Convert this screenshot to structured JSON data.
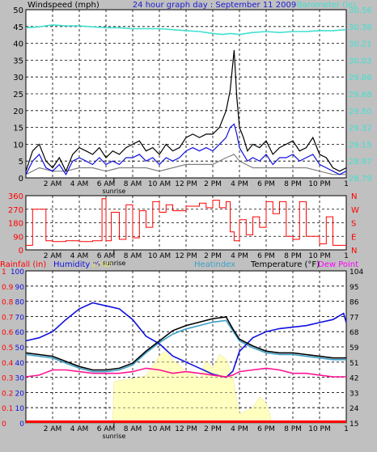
{
  "header": {
    "left_label": "Windspeed (mph)",
    "title": "24 hour graph day : September 11 2009",
    "right_label": "Barometer (in)"
  },
  "colors": {
    "background": "#c0c0c0",
    "panel": "#ffffff",
    "title_blue": "#1a1ad0",
    "cyan": "#40e0d0",
    "red": "#ff0000",
    "blue": "#1010e0",
    "black": "#000000",
    "gray": "#808080",
    "pink": "#ff1493",
    "solar": "#ffffc0",
    "heat_blue": "#3aa0c8",
    "dewpoint_label": "#ff00ff"
  },
  "time_axis": {
    "labels": [
      "2 AM",
      "4 AM",
      "6 AM",
      "8 AM",
      "10 AM",
      "12 PM",
      "2 PM",
      "4 PM",
      "6 PM",
      "8 PM",
      "10 PM"
    ],
    "label_hours": [
      2,
      4,
      6,
      8,
      10,
      12,
      14,
      16,
      18,
      20,
      22
    ],
    "end_mark": "1",
    "sunrise_label": "sunrise",
    "sunrise_hour": 6.6
  },
  "chart_data": [
    {
      "type": "line",
      "title": "",
      "ylabel": "Windspeed (mph)",
      "y2label": "Barometer (in)",
      "ylim": [
        0,
        50
      ],
      "yticks": [
        "0",
        "5",
        "10",
        "15",
        "20",
        "25",
        "30",
        "35",
        "40",
        "45",
        "50"
      ],
      "y2lim": [
        28.79,
        30.56
      ],
      "y2ticks": [
        "28.79",
        "28.97",
        "29.15",
        "29.32",
        "29.50",
        "29.68",
        "29.86",
        "30.03",
        "30.21",
        "30.38",
        "30.56"
      ],
      "xlim": [
        0,
        24
      ],
      "grid": true,
      "series": [
        {
          "name": "Barometer (in)",
          "axis": "right",
          "color": "#40e0d0",
          "x": [
            0,
            1,
            2,
            3,
            4,
            5,
            6,
            7,
            8,
            9,
            10,
            11,
            12,
            13,
            14,
            14.7,
            15.3,
            16,
            17,
            18,
            19,
            20,
            21,
            22,
            23,
            24
          ],
          "y": [
            30.37,
            30.38,
            30.4,
            30.39,
            30.39,
            30.38,
            30.37,
            30.37,
            30.36,
            30.36,
            30.36,
            30.35,
            30.34,
            30.33,
            30.31,
            30.3,
            30.31,
            30.3,
            30.32,
            30.33,
            30.32,
            30.33,
            30.33,
            30.34,
            30.34,
            30.35
          ]
        },
        {
          "name": "Wind gust",
          "axis": "left",
          "color": "#000000",
          "x": [
            0,
            0.5,
            1,
            1.5,
            2,
            2.5,
            3,
            3.5,
            4,
            4.5,
            5,
            5.5,
            6,
            6.5,
            7,
            7.5,
            8,
            8.5,
            9,
            9.5,
            10,
            10.5,
            11,
            11.5,
            12,
            12.5,
            13,
            13.5,
            14,
            14.5,
            15,
            15.3,
            15.6,
            15.8,
            16,
            16.3,
            16.6,
            17,
            17.5,
            18,
            18.5,
            19,
            19.5,
            20,
            20.5,
            21,
            21.5,
            22,
            22.5,
            23,
            23.5,
            24
          ],
          "y": [
            2,
            8,
            10,
            5,
            3,
            6,
            2,
            7,
            9,
            8,
            7,
            9,
            6,
            8,
            7,
            9,
            10,
            11,
            8,
            9,
            7,
            10,
            8,
            9,
            12,
            13,
            12,
            13,
            13,
            15,
            20,
            26,
            38,
            24,
            15,
            12,
            8,
            10,
            9,
            11,
            7,
            9,
            10,
            11,
            8,
            9,
            12,
            7,
            6,
            3,
            2,
            3
          ]
        },
        {
          "name": "Wind speed",
          "axis": "left",
          "color": "#1010e0",
          "x": [
            0,
            0.5,
            1,
            1.5,
            2,
            2.5,
            3,
            3.5,
            4,
            4.5,
            5,
            5.5,
            6,
            6.5,
            7,
            7.5,
            8,
            8.5,
            9,
            9.5,
            10,
            10.5,
            11,
            11.5,
            12,
            12.5,
            13,
            13.5,
            14,
            14.5,
            15,
            15.3,
            15.6,
            15.8,
            16,
            16.3,
            16.6,
            17,
            17.5,
            18,
            18.5,
            19,
            19.5,
            20,
            20.5,
            21,
            21.5,
            22,
            22.5,
            23,
            23.5,
            24
          ],
          "y": [
            1,
            5,
            7,
            3,
            2,
            4,
            1,
            5,
            6,
            5,
            4,
            6,
            4,
            5,
            4,
            6,
            6,
            7,
            5,
            6,
            4,
            6,
            5,
            6,
            8,
            9,
            8,
            9,
            8,
            10,
            12,
            15,
            16,
            13,
            9,
            7,
            5,
            6,
            5,
            7,
            4,
            6,
            6,
            7,
            5,
            6,
            7,
            4,
            3,
            2,
            1,
            2
          ]
        },
        {
          "name": "Wind average",
          "axis": "left",
          "color": "#808080",
          "x": [
            0,
            1,
            2,
            3,
            4,
            5,
            6,
            7,
            8,
            9,
            10,
            11,
            12,
            13,
            14,
            15,
            15.6,
            16,
            17,
            18,
            19,
            20,
            21,
            22,
            23,
            24
          ],
          "y": [
            1,
            3,
            2,
            2,
            3,
            3,
            2,
            3,
            3,
            3,
            2,
            3,
            4,
            4,
            4,
            6,
            7,
            5,
            3,
            3,
            3,
            3,
            3,
            2,
            1,
            1
          ]
        }
      ]
    },
    {
      "type": "line",
      "title": "",
      "ylabel": "Wind direction",
      "ylim": [
        0,
        360
      ],
      "yticks": [
        "0",
        "90",
        "180",
        "270",
        "360"
      ],
      "y2ticks": [
        "N",
        "E",
        "S",
        "W",
        "N"
      ],
      "xlim": [
        0,
        24
      ],
      "grid": true,
      "series": [
        {
          "name": "Wind direction",
          "axis": "left",
          "color": "#ff0000",
          "x": [
            0,
            0.5,
            1,
            1.5,
            2,
            3,
            4,
            5,
            5.7,
            6,
            6.4,
            7,
            7.5,
            8,
            8.5,
            9,
            9.5,
            10,
            10.5,
            11,
            12,
            13,
            13.5,
            14,
            14.5,
            15,
            15.3,
            15.6,
            16,
            16.5,
            17,
            17.5,
            18,
            18.5,
            19,
            19.5,
            20,
            20.5,
            21,
            22,
            22.5,
            23,
            24
          ],
          "y": [
            30,
            270,
            270,
            60,
            55,
            60,
            55,
            60,
            340,
            60,
            250,
            70,
            300,
            80,
            260,
            150,
            320,
            250,
            300,
            260,
            290,
            310,
            280,
            330,
            280,
            320,
            120,
            60,
            200,
            100,
            220,
            150,
            320,
            240,
            320,
            90,
            70,
            320,
            90,
            40,
            220,
            30,
            30
          ]
        }
      ]
    },
    {
      "type": "line",
      "title": "",
      "ylabel": "Temperature (°F)",
      "y_left_outer": {
        "name": "Rainfall (in)",
        "ticks": [
          "0",
          "0.1",
          "0.2",
          "0.3",
          "0.4",
          "0.5",
          "0.6",
          "0.7",
          "0.8",
          "0.9",
          "1"
        ]
      },
      "y_left_inner": {
        "name": "Humidity %",
        "ticks": [
          "0",
          "10",
          "20",
          "30",
          "40",
          "50",
          "60",
          "70",
          "80",
          "90",
          "100"
        ]
      },
      "y_right": {
        "name": "Temperature (°F)",
        "ticks": [
          "15",
          "24",
          "33",
          "42",
          "51",
          "59",
          "68",
          "77",
          "86",
          "95",
          "104"
        ]
      },
      "legend": [
        "Rainfall (in)",
        "Humidity %",
        "Solar",
        "Heatindex",
        "Temperature (°F)",
        "Dew Point"
      ],
      "ylim": [
        0,
        100
      ],
      "xlim": [
        0,
        24
      ],
      "grid": true,
      "series": [
        {
          "name": "Solar",
          "axis": "left",
          "color": "#ffffc0",
          "x": [
            0,
            6.5,
            6.6,
            7,
            8,
            9,
            10,
            10.5,
            11,
            11.5,
            12,
            12.5,
            13,
            13.5,
            14,
            14.5,
            15,
            15.5,
            16,
            16.5,
            17,
            17.5,
            18,
            18.3,
            18.4,
            24
          ],
          "y": [
            0,
            0,
            27,
            28,
            29,
            31,
            44,
            48,
            41,
            38,
            33,
            33,
            29,
            41,
            36,
            45,
            42,
            30,
            6,
            8,
            10,
            17,
            13,
            5,
            0,
            0
          ]
        },
        {
          "name": "Humidity %",
          "axis": "left",
          "color": "#1010e0",
          "x": [
            0,
            1,
            2,
            3,
            4,
            5,
            6,
            7,
            8,
            9,
            10,
            11,
            12,
            13,
            14,
            15,
            15.5,
            16,
            17,
            18,
            19,
            20,
            21,
            22,
            23,
            23.8,
            24
          ],
          "y": [
            54,
            56,
            60,
            68,
            75,
            79,
            77,
            75,
            68,
            57,
            52,
            44,
            40,
            36,
            32,
            30,
            34,
            47,
            56,
            60,
            62,
            63,
            64,
            66,
            68,
            72,
            66
          ]
        },
        {
          "name": "Temperature (°F)",
          "axis": "right",
          "color": "#000000",
          "x": [
            0,
            1,
            2,
            3,
            4,
            5,
            6,
            7,
            8,
            9,
            10,
            11,
            12,
            13,
            14,
            15,
            15.5,
            16,
            17,
            18,
            19,
            20,
            21,
            22,
            23,
            24
          ],
          "y": [
            56,
            55,
            54,
            51,
            48,
            46,
            46,
            47,
            50,
            57,
            63,
            69,
            72,
            74,
            76,
            77,
            70,
            64,
            60,
            57,
            56,
            56,
            55,
            54,
            53,
            53
          ]
        },
        {
          "name": "Heatindex",
          "axis": "right",
          "color": "#3aa0c8",
          "x": [
            0,
            1,
            2,
            3,
            4,
            5,
            6,
            7,
            8,
            9,
            10,
            11,
            12,
            13,
            14,
            15,
            15.5,
            16,
            17,
            18,
            19,
            20,
            21,
            22,
            23,
            24
          ],
          "y": [
            55,
            54,
            53,
            50,
            47,
            45,
            45,
            46,
            49,
            56,
            62,
            67,
            70,
            72,
            74,
            75,
            69,
            63,
            59,
            56,
            55,
            55,
            54,
            53,
            52,
            52
          ]
        },
        {
          "name": "Dew Point",
          "axis": "right",
          "color": "#ff1493",
          "x": [
            0,
            1,
            2,
            3,
            4,
            5,
            6,
            7,
            8,
            9,
            10,
            11,
            12,
            13,
            14,
            15,
            15.5,
            16,
            17,
            18,
            19,
            20,
            21,
            22,
            23,
            24
          ],
          "y": [
            42,
            43,
            46,
            46,
            45,
            44,
            44,
            44,
            45,
            47,
            46,
            44,
            45,
            44,
            43,
            42,
            43,
            45,
            46,
            47,
            46,
            44,
            44,
            43,
            42,
            42
          ]
        },
        {
          "name": "Rainfall (in)",
          "axis": "rain",
          "color": "#ff0000",
          "x": [
            0,
            24
          ],
          "y": [
            0,
            0
          ]
        }
      ]
    }
  ]
}
